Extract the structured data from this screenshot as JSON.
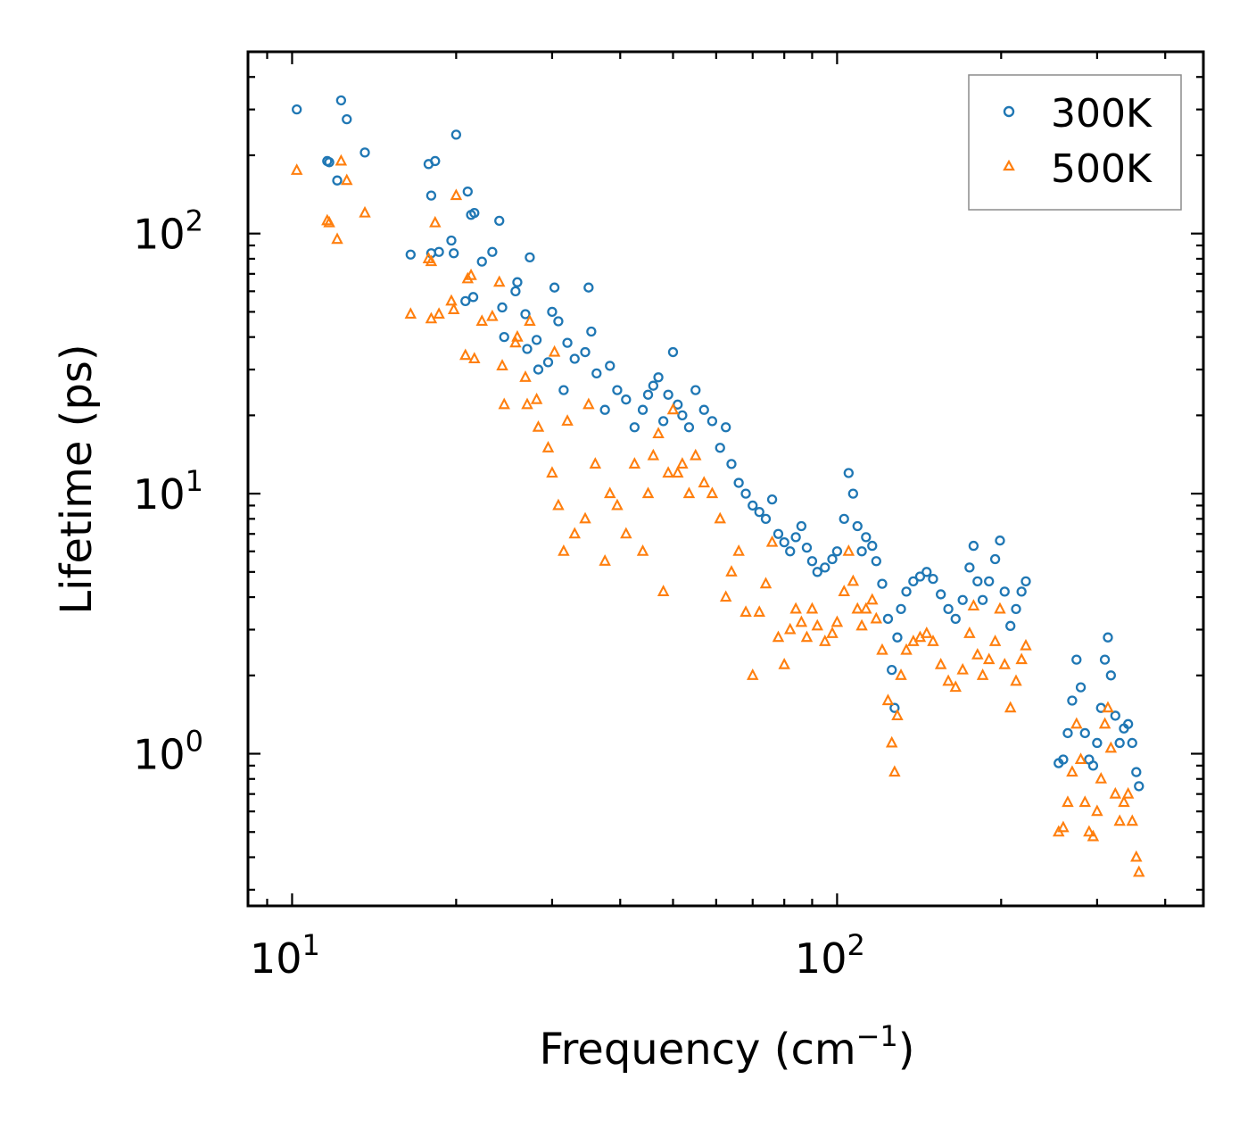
{
  "chart_data": {
    "type": "scatter",
    "xscale": "log",
    "yscale": "log",
    "xlim": [
      8.3,
      470
    ],
    "ylim": [
      0.26,
      500
    ],
    "xlabel": "Frequency (cm",
    "xlabel_sup": "−1",
    "xlabel_close": ")",
    "ylabel": "Lifetime (ps)",
    "x_ticks": [
      {
        "value": 10,
        "base": "10",
        "exp": "1"
      },
      {
        "value": 100,
        "base": "10",
        "exp": "2"
      }
    ],
    "y_ticks": [
      {
        "value": 1,
        "base": "10",
        "exp": "0"
      },
      {
        "value": 10,
        "base": "10",
        "exp": "1"
      },
      {
        "value": 100,
        "base": "10",
        "exp": "2"
      }
    ],
    "legend_position": "top-right",
    "series": [
      {
        "name": "300K",
        "marker": "circle",
        "color": "#1f77b4",
        "points": [
          [
            10.2,
            300
          ],
          [
            11.6,
            190
          ],
          [
            11.7,
            188
          ],
          [
            12.1,
            160
          ],
          [
            12.3,
            325
          ],
          [
            12.6,
            275
          ],
          [
            13.6,
            205
          ],
          [
            16.5,
            83
          ],
          [
            17.8,
            185
          ],
          [
            18.0,
            140
          ],
          [
            18.3,
            190
          ],
          [
            18.6,
            85
          ],
          [
            18.0,
            84
          ],
          [
            19.6,
            94
          ],
          [
            19.8,
            84
          ],
          [
            20.0,
            240
          ],
          [
            20.8,
            55
          ],
          [
            21.0,
            145
          ],
          [
            21.3,
            118
          ],
          [
            21.6,
            120
          ],
          [
            21.5,
            57
          ],
          [
            22.3,
            78
          ],
          [
            23.3,
            85
          ],
          [
            24.0,
            112
          ],
          [
            24.3,
            52
          ],
          [
            24.5,
            40
          ],
          [
            25.7,
            60
          ],
          [
            25.9,
            65
          ],
          [
            26.8,
            49
          ],
          [
            27.0,
            36
          ],
          [
            27.3,
            81
          ],
          [
            28.1,
            39
          ],
          [
            28.3,
            30
          ],
          [
            29.5,
            32
          ],
          [
            30.0,
            50
          ],
          [
            30.3,
            62
          ],
          [
            30.8,
            46
          ],
          [
            31.5,
            25
          ],
          [
            32.0,
            38
          ],
          [
            33.0,
            33
          ],
          [
            34.5,
            35
          ],
          [
            35.0,
            62
          ],
          [
            35.4,
            42
          ],
          [
            36.2,
            29
          ],
          [
            37.5,
            21
          ],
          [
            38.3,
            31
          ],
          [
            39.5,
            25
          ],
          [
            41.0,
            23
          ],
          [
            42.5,
            18
          ],
          [
            44.0,
            21
          ],
          [
            45.0,
            24
          ],
          [
            46.0,
            26
          ],
          [
            47.0,
            28
          ],
          [
            48.0,
            19
          ],
          [
            49.0,
            24
          ],
          [
            50.0,
            35
          ],
          [
            51.0,
            22
          ],
          [
            52.0,
            20
          ],
          [
            53.5,
            18
          ],
          [
            55.0,
            25
          ],
          [
            57.0,
            21
          ],
          [
            59.0,
            19
          ],
          [
            61.0,
            15
          ],
          [
            62.5,
            18
          ],
          [
            64.0,
            13
          ],
          [
            66.0,
            11
          ],
          [
            68.0,
            10
          ],
          [
            70.0,
            9
          ],
          [
            72.0,
            8.5
          ],
          [
            74.0,
            8
          ],
          [
            76.0,
            9.5
          ],
          [
            78.0,
            7
          ],
          [
            80.0,
            6.5
          ],
          [
            82.0,
            6
          ],
          [
            84.0,
            6.8
          ],
          [
            86.0,
            7.5
          ],
          [
            88.0,
            6.2
          ],
          [
            90.0,
            5.5
          ],
          [
            92.0,
            5
          ],
          [
            95.0,
            5.2
          ],
          [
            98.0,
            5.6
          ],
          [
            100.0,
            6
          ],
          [
            103.0,
            8
          ],
          [
            105.0,
            12
          ],
          [
            107.0,
            10
          ],
          [
            109.0,
            7.5
          ],
          [
            111.0,
            6
          ],
          [
            113.0,
            6.8
          ],
          [
            116.0,
            6.3
          ],
          [
            118.0,
            5.5
          ],
          [
            121.0,
            4.5
          ],
          [
            124.0,
            3.3
          ],
          [
            126.0,
            2.1
          ],
          [
            127.5,
            1.5
          ],
          [
            129.0,
            2.8
          ],
          [
            131.0,
            3.6
          ],
          [
            134.0,
            4.2
          ],
          [
            138.0,
            4.6
          ],
          [
            142.0,
            4.8
          ],
          [
            146.0,
            5
          ],
          [
            150.0,
            4.7
          ],
          [
            155.0,
            4.1
          ],
          [
            160.0,
            3.6
          ],
          [
            165.0,
            3.3
          ],
          [
            170.0,
            3.9
          ],
          [
            175.0,
            5.2
          ],
          [
            178.0,
            6.3
          ],
          [
            181.0,
            4.6
          ],
          [
            185.0,
            3.9
          ],
          [
            190.0,
            4.6
          ],
          [
            195.0,
            5.6
          ],
          [
            199.0,
            6.6
          ],
          [
            203.0,
            4.2
          ],
          [
            208.0,
            3.1
          ],
          [
            213.0,
            3.6
          ],
          [
            218.0,
            4.2
          ],
          [
            222.0,
            4.6
          ],
          [
            255.0,
            0.92
          ],
          [
            260.0,
            0.95
          ],
          [
            265.0,
            1.2
          ],
          [
            270.0,
            1.6
          ],
          [
            275.0,
            2.3
          ],
          [
            280.0,
            1.8
          ],
          [
            285.0,
            1.2
          ],
          [
            290.0,
            0.95
          ],
          [
            295.0,
            0.9
          ],
          [
            300.0,
            1.1
          ],
          [
            305.0,
            1.5
          ],
          [
            310.0,
            2.3
          ],
          [
            314.0,
            2.8
          ],
          [
            318.0,
            2
          ],
          [
            324.0,
            1.4
          ],
          [
            330.0,
            1.1
          ],
          [
            336.0,
            1.25
          ],
          [
            342.0,
            1.3
          ],
          [
            348.0,
            1.1
          ],
          [
            354.0,
            0.85
          ],
          [
            358.0,
            0.75
          ]
        ]
      },
      {
        "name": "500K",
        "marker": "triangle",
        "color": "#ff7f0e",
        "points": [
          [
            10.2,
            175
          ],
          [
            11.6,
            112
          ],
          [
            11.7,
            110
          ],
          [
            12.1,
            95
          ],
          [
            12.3,
            190
          ],
          [
            12.6,
            160
          ],
          [
            13.6,
            120
          ],
          [
            16.5,
            49
          ],
          [
            17.8,
            80
          ],
          [
            18.0,
            78
          ],
          [
            18.3,
            110
          ],
          [
            18.6,
            49
          ],
          [
            18.0,
            47
          ],
          [
            19.6,
            55
          ],
          [
            19.8,
            51
          ],
          [
            20.0,
            140
          ],
          [
            20.8,
            34
          ],
          [
            21.0,
            67
          ],
          [
            21.3,
            69
          ],
          [
            21.6,
            33
          ],
          [
            22.3,
            46
          ],
          [
            23.3,
            48
          ],
          [
            24.0,
            65
          ],
          [
            24.3,
            31
          ],
          [
            24.5,
            22
          ],
          [
            25.7,
            38
          ],
          [
            25.9,
            40
          ],
          [
            26.8,
            28
          ],
          [
            27.0,
            22
          ],
          [
            27.3,
            46
          ],
          [
            28.1,
            23
          ],
          [
            28.3,
            18
          ],
          [
            29.5,
            15
          ],
          [
            30.0,
            12
          ],
          [
            30.3,
            35
          ],
          [
            30.8,
            9
          ],
          [
            31.5,
            6
          ],
          [
            32.0,
            19
          ],
          [
            33.0,
            7
          ],
          [
            34.5,
            8
          ],
          [
            35.0,
            22
          ],
          [
            36.0,
            13
          ],
          [
            37.5,
            5.5
          ],
          [
            38.3,
            10
          ],
          [
            39.5,
            9
          ],
          [
            41.0,
            7
          ],
          [
            42.5,
            13
          ],
          [
            44.0,
            6
          ],
          [
            45.0,
            10
          ],
          [
            46.0,
            14
          ],
          [
            47.0,
            17
          ],
          [
            48.0,
            4.2
          ],
          [
            49.0,
            12
          ],
          [
            50.0,
            21
          ],
          [
            51.0,
            12
          ],
          [
            52.0,
            13
          ],
          [
            53.5,
            10
          ],
          [
            55.0,
            14
          ],
          [
            57.0,
            11
          ],
          [
            59.0,
            10
          ],
          [
            61.0,
            8
          ],
          [
            62.5,
            4
          ],
          [
            64.0,
            5
          ],
          [
            66.0,
            6
          ],
          [
            68.0,
            3.5
          ],
          [
            70.0,
            2
          ],
          [
            72.0,
            3.5
          ],
          [
            74.0,
            4.5
          ],
          [
            76.0,
            6.5
          ],
          [
            78.0,
            2.8
          ],
          [
            80.0,
            2.2
          ],
          [
            82.0,
            3
          ],
          [
            84.0,
            3.6
          ],
          [
            86.0,
            3.2
          ],
          [
            88.0,
            2.8
          ],
          [
            90.0,
            3.6
          ],
          [
            92.0,
            3.1
          ],
          [
            95.0,
            2.7
          ],
          [
            98.0,
            2.9
          ],
          [
            100.0,
            3.2
          ],
          [
            103.0,
            4.2
          ],
          [
            105.0,
            6
          ],
          [
            107.0,
            4.6
          ],
          [
            109.0,
            3.6
          ],
          [
            111.0,
            3.1
          ],
          [
            113.0,
            3.6
          ],
          [
            116.0,
            3.9
          ],
          [
            118.0,
            3.3
          ],
          [
            121.0,
            2.5
          ],
          [
            124.0,
            1.6
          ],
          [
            126.0,
            1.1
          ],
          [
            127.5,
            0.85
          ],
          [
            129.0,
            1.4
          ],
          [
            131.0,
            2
          ],
          [
            134.0,
            2.5
          ],
          [
            138.0,
            2.7
          ],
          [
            142.0,
            2.8
          ],
          [
            146.0,
            2.9
          ],
          [
            150.0,
            2.7
          ],
          [
            155.0,
            2.2
          ],
          [
            160.0,
            1.9
          ],
          [
            165.0,
            1.8
          ],
          [
            170.0,
            2.1
          ],
          [
            175.0,
            2.9
          ],
          [
            178.0,
            3.7
          ],
          [
            181.0,
            2.4
          ],
          [
            185.0,
            2
          ],
          [
            190.0,
            2.3
          ],
          [
            195.0,
            2.7
          ],
          [
            199.0,
            3.6
          ],
          [
            203.0,
            2.2
          ],
          [
            208.0,
            1.5
          ],
          [
            213.0,
            1.9
          ],
          [
            218.0,
            2.3
          ],
          [
            222.0,
            2.6
          ],
          [
            255.0,
            0.5
          ],
          [
            260.0,
            0.52
          ],
          [
            265.0,
            0.65
          ],
          [
            270.0,
            0.85
          ],
          [
            275.0,
            1.3
          ],
          [
            280.0,
            0.95
          ],
          [
            285.0,
            0.65
          ],
          [
            290.0,
            0.5
          ],
          [
            295.0,
            0.48
          ],
          [
            300.0,
            0.6
          ],
          [
            305.0,
            0.8
          ],
          [
            310.0,
            1.3
          ],
          [
            314.0,
            1.5
          ],
          [
            318.0,
            1.05
          ],
          [
            324.0,
            0.7
          ],
          [
            330.0,
            0.55
          ],
          [
            336.0,
            0.65
          ],
          [
            342.0,
            0.7
          ],
          [
            348.0,
            0.55
          ],
          [
            354.0,
            0.4
          ],
          [
            358.0,
            0.35
          ]
        ]
      }
    ]
  }
}
